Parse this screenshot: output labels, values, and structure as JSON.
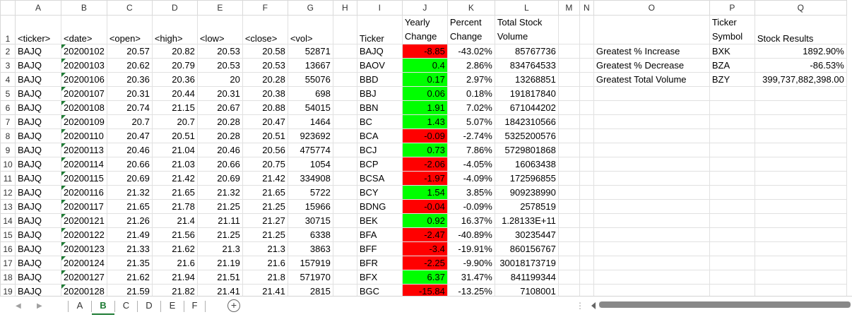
{
  "columns": [
    "A",
    "B",
    "C",
    "D",
    "E",
    "F",
    "G",
    "H",
    "I",
    "J",
    "K",
    "L",
    "M",
    "N",
    "O",
    "P",
    "Q"
  ],
  "header_row": {
    "row_num": "1",
    "A": "<ticker>",
    "B": "<date>",
    "C": "<open>",
    "D": "<high>",
    "E": "<low>",
    "F": "<close>",
    "G": "<vol>",
    "I": "Ticker",
    "J": "Yearly Change",
    "K": "Percent Change",
    "L": "Total Stock Volume",
    "P": "Ticker Symbol",
    "Q": "Stock Results"
  },
  "rows": [
    {
      "n": "2",
      "A": "BAJQ",
      "B": "20200102",
      "C": "20.57",
      "D": "20.82",
      "E": "20.53",
      "F": "20.58",
      "G": "52871",
      "I": "BAJQ",
      "J": "-8.85",
      "Jc": "red",
      "K": "-43.02%",
      "L": "85767736",
      "O": "Greatest % Increase",
      "P": "BXK",
      "Q": "1892.90%"
    },
    {
      "n": "3",
      "A": "BAJQ",
      "B": "20200103",
      "C": "20.62",
      "D": "20.79",
      "E": "20.53",
      "F": "20.53",
      "G": "13667",
      "I": "BAOV",
      "J": "0.4",
      "Jc": "green",
      "K": "2.86%",
      "L": "834764533",
      "O": "Greatest % Decrease",
      "P": "BZA",
      "Q": "-86.53%"
    },
    {
      "n": "4",
      "A": "BAJQ",
      "B": "20200106",
      "C": "20.36",
      "D": "20.36",
      "E": "20",
      "F": "20.28",
      "G": "55076",
      "I": "BBD",
      "J": "0.17",
      "Jc": "green",
      "K": "2.97%",
      "L": "13268851",
      "O": "Greatest Total Volume",
      "P": "BZY",
      "Q": "399,737,882,398.00"
    },
    {
      "n": "5",
      "A": "BAJQ",
      "B": "20200107",
      "C": "20.31",
      "D": "20.44",
      "E": "20.31",
      "F": "20.38",
      "G": "698",
      "I": "BBJ",
      "J": "0.06",
      "Jc": "green",
      "K": "0.18%",
      "L": "191817840",
      "O": "",
      "P": "",
      "Q": ""
    },
    {
      "n": "6",
      "A": "BAJQ",
      "B": "20200108",
      "C": "20.74",
      "D": "21.15",
      "E": "20.67",
      "F": "20.88",
      "G": "54015",
      "I": "BBN",
      "J": "1.91",
      "Jc": "green",
      "K": "7.02%",
      "L": "671044202",
      "O": "",
      "P": "",
      "Q": ""
    },
    {
      "n": "7",
      "A": "BAJQ",
      "B": "20200109",
      "C": "20.7",
      "D": "20.7",
      "E": "20.28",
      "F": "20.47",
      "G": "1464",
      "I": "BC",
      "J": "1.43",
      "Jc": "green",
      "K": "5.07%",
      "L": "1842310566",
      "O": "",
      "P": "",
      "Q": ""
    },
    {
      "n": "8",
      "A": "BAJQ",
      "B": "20200110",
      "C": "20.47",
      "D": "20.51",
      "E": "20.28",
      "F": "20.51",
      "G": "923692",
      "I": "BCA",
      "J": "-0.09",
      "Jc": "red",
      "K": "-2.74%",
      "L": "5325200576",
      "O": "",
      "P": "",
      "Q": ""
    },
    {
      "n": "9",
      "A": "BAJQ",
      "B": "20200113",
      "C": "20.46",
      "D": "21.04",
      "E": "20.46",
      "F": "20.56",
      "G": "475774",
      "I": "BCJ",
      "J": "0.73",
      "Jc": "green",
      "K": "7.86%",
      "L": "5729801868",
      "O": "",
      "P": "",
      "Q": ""
    },
    {
      "n": "10",
      "A": "BAJQ",
      "B": "20200114",
      "C": "20.66",
      "D": "21.03",
      "E": "20.66",
      "F": "20.75",
      "G": "1054",
      "I": "BCP",
      "J": "-2.06",
      "Jc": "red",
      "K": "-4.05%",
      "L": "16063438",
      "O": "",
      "P": "",
      "Q": ""
    },
    {
      "n": "11",
      "A": "BAJQ",
      "B": "20200115",
      "C": "20.69",
      "D": "21.42",
      "E": "20.69",
      "F": "21.42",
      "G": "334908",
      "I": "BCSA",
      "J": "-1.97",
      "Jc": "red",
      "K": "-4.09%",
      "L": "172596855",
      "O": "",
      "P": "",
      "Q": ""
    },
    {
      "n": "12",
      "A": "BAJQ",
      "B": "20200116",
      "C": "21.32",
      "D": "21.65",
      "E": "21.32",
      "F": "21.65",
      "G": "5722",
      "I": "BCY",
      "J": "1.54",
      "Jc": "green",
      "K": "3.85%",
      "L": "909238990",
      "O": "",
      "P": "",
      "Q": ""
    },
    {
      "n": "13",
      "A": "BAJQ",
      "B": "20200117",
      "C": "21.65",
      "D": "21.78",
      "E": "21.25",
      "F": "21.25",
      "G": "15966",
      "I": "BDNG",
      "J": "-0.04",
      "Jc": "red",
      "K": "-0.09%",
      "L": "2578519",
      "O": "",
      "P": "",
      "Q": ""
    },
    {
      "n": "14",
      "A": "BAJQ",
      "B": "20200121",
      "C": "21.26",
      "D": "21.4",
      "E": "21.11",
      "F": "21.27",
      "G": "30715",
      "I": "BEK",
      "J": "0.92",
      "Jc": "green",
      "K": "16.37%",
      "L": "1.28133E+11",
      "O": "",
      "P": "",
      "Q": ""
    },
    {
      "n": "15",
      "A": "BAJQ",
      "B": "20200122",
      "C": "21.49",
      "D": "21.56",
      "E": "21.25",
      "F": "21.25",
      "G": "6338",
      "I": "BFA",
      "J": "-2.47",
      "Jc": "red",
      "K": "-40.89%",
      "L": "30235447",
      "O": "",
      "P": "",
      "Q": ""
    },
    {
      "n": "16",
      "A": "BAJQ",
      "B": "20200123",
      "C": "21.33",
      "D": "21.62",
      "E": "21.3",
      "F": "21.3",
      "G": "3863",
      "I": "BFF",
      "J": "-3.4",
      "Jc": "red",
      "K": "-19.91%",
      "L": "860156767",
      "O": "",
      "P": "",
      "Q": ""
    },
    {
      "n": "17",
      "A": "BAJQ",
      "B": "20200124",
      "C": "21.35",
      "D": "21.6",
      "E": "21.19",
      "F": "21.6",
      "G": "157919",
      "I": "BFR",
      "J": "-2.25",
      "Jc": "red",
      "K": "-9.90%",
      "L": "30018173719",
      "O": "",
      "P": "",
      "Q": ""
    },
    {
      "n": "18",
      "A": "BAJQ",
      "B": "20200127",
      "C": "21.62",
      "D": "21.94",
      "E": "21.51",
      "F": "21.8",
      "G": "571970",
      "I": "BFX",
      "J": "6.37",
      "Jc": "green",
      "K": "31.47%",
      "L": "841199344",
      "O": "",
      "P": "",
      "Q": ""
    },
    {
      "n": "19",
      "A": "BAJQ",
      "B": "20200128",
      "C": "21.59",
      "D": "21.82",
      "E": "21.41",
      "F": "21.41",
      "G": "2815",
      "I": "BGC",
      "J": "-15.84",
      "Jc": "red",
      "K": "-13.25%",
      "L": "7108001",
      "O": "",
      "P": "",
      "Q": ""
    }
  ],
  "sheet_tabs": [
    "A",
    "B",
    "C",
    "D",
    "E",
    "F"
  ],
  "active_sheet": "B",
  "add_sheet_glyph": "+",
  "more_glyph": "⋮",
  "colors": {
    "positive": "#00ff00",
    "negative": "#ff0000",
    "accent": "#1e7b34"
  }
}
